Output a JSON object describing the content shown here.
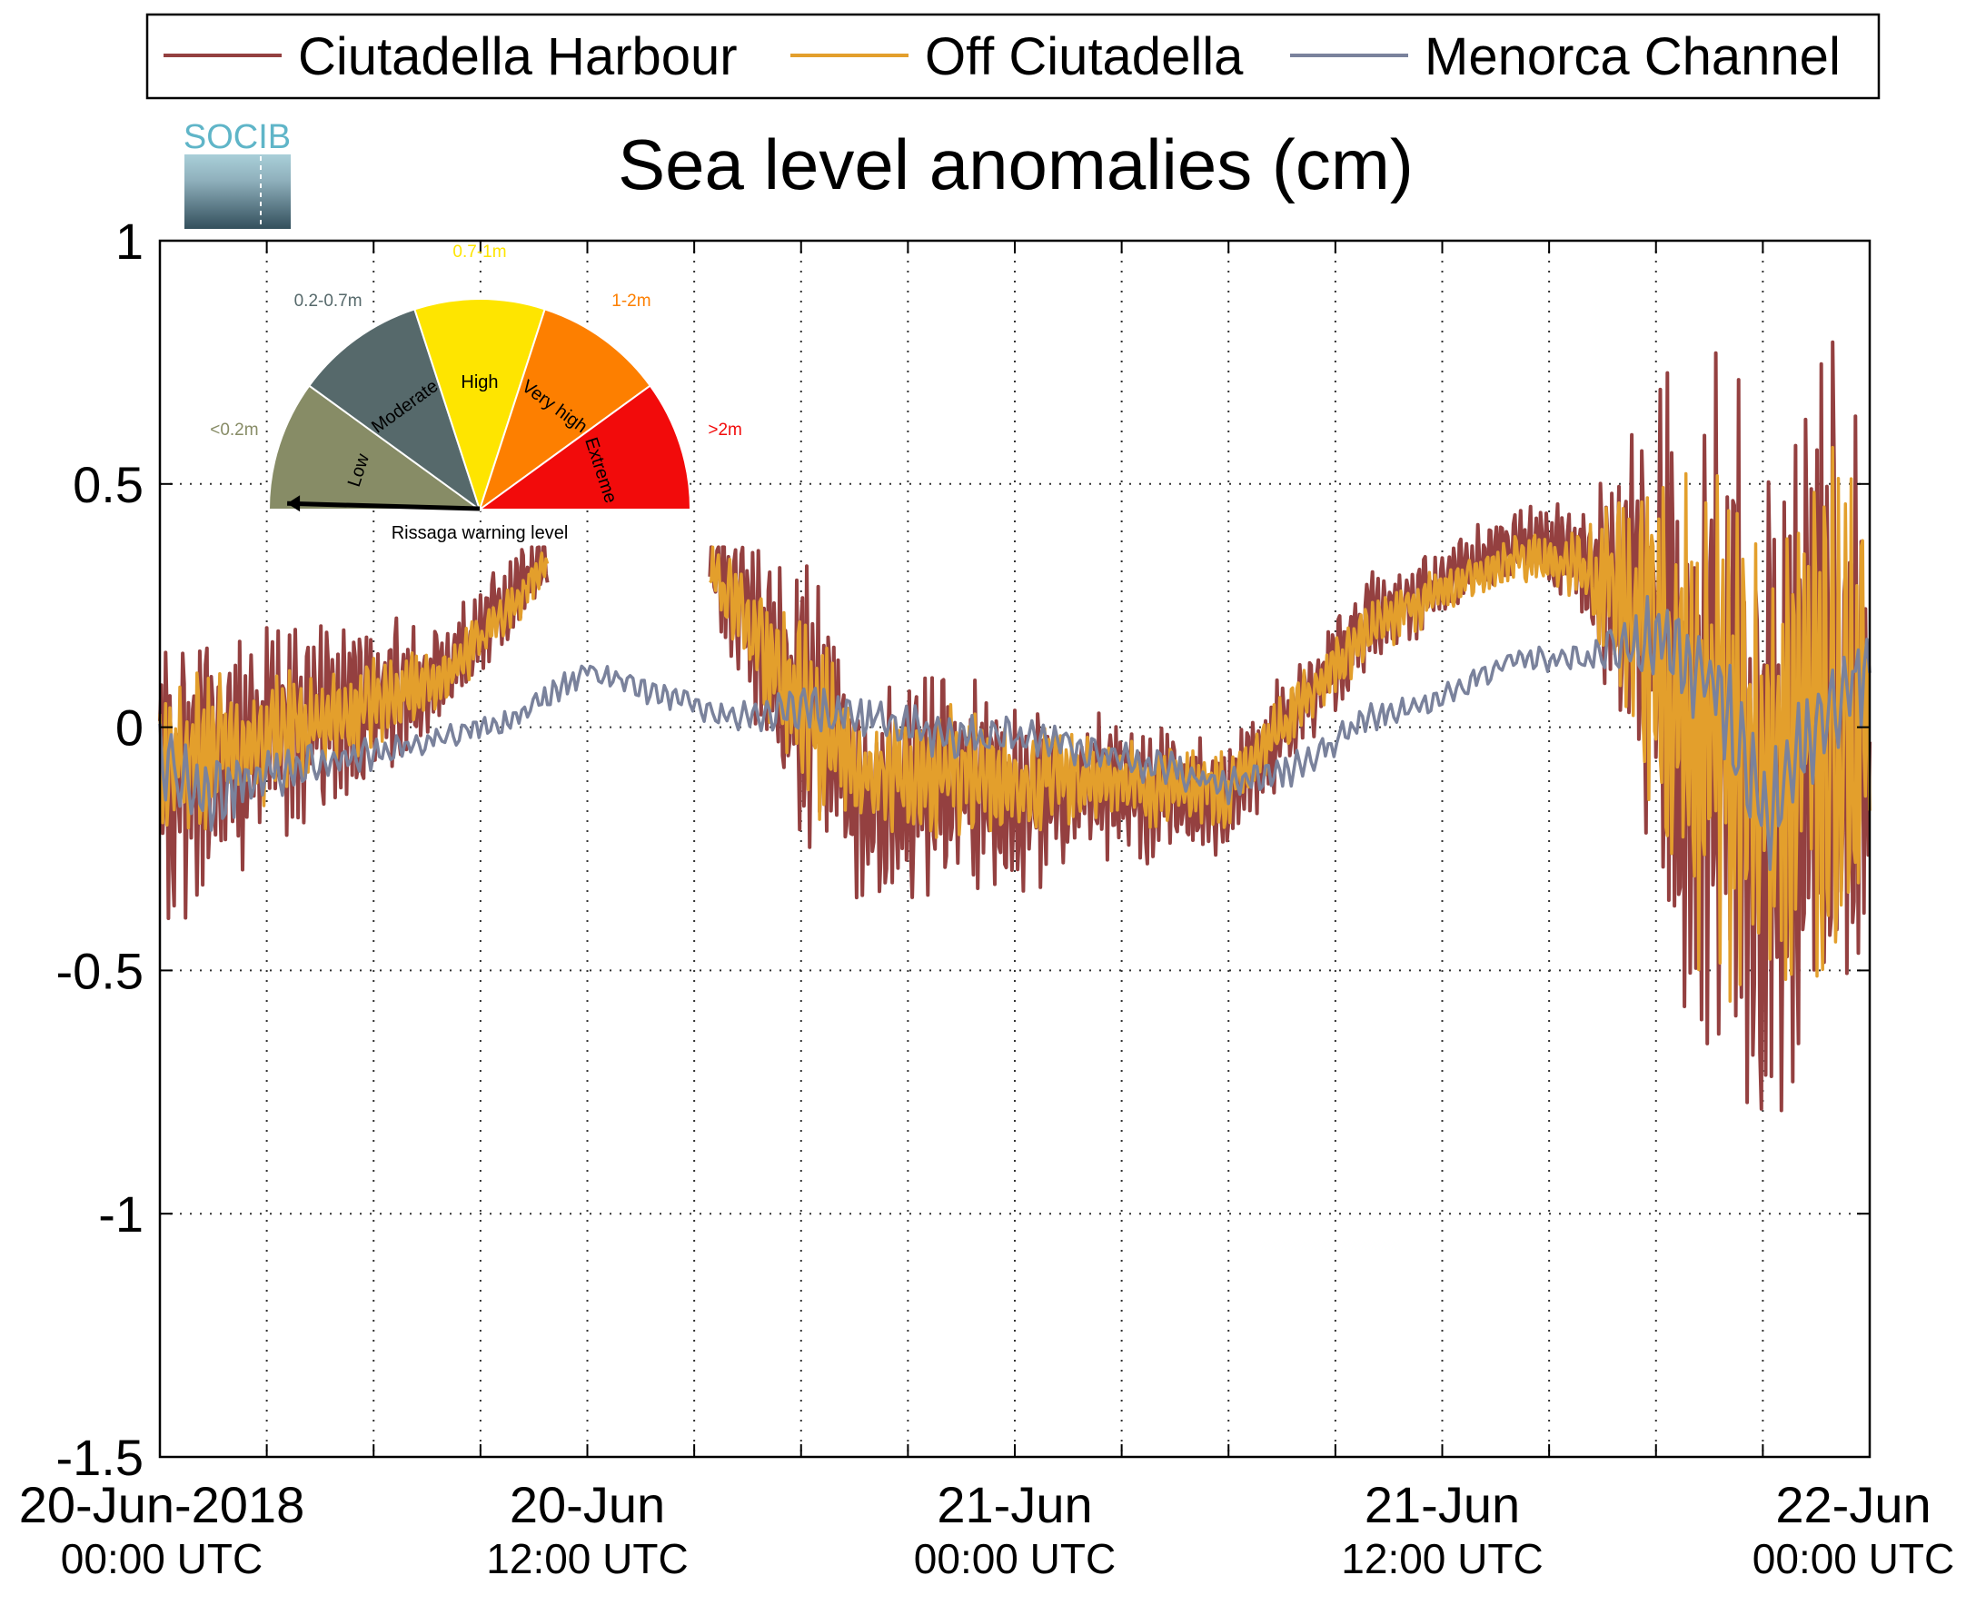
{
  "chart_data": {
    "type": "line",
    "title": "Sea level anomalies (cm)",
    "xlabel": "",
    "ylabel": "",
    "ylim": [
      -1.5,
      1
    ],
    "yticks": [
      1,
      0.5,
      0,
      -0.5,
      -1,
      -1.5
    ],
    "ytick_labels": [
      "1",
      "0.5",
      "0",
      "-0.5",
      "-1",
      "-1.5"
    ],
    "xlim_hours": [
      0,
      48
    ],
    "x_unit": "hours since 20-Jun-2018 00:00 UTC",
    "xtick_labels": [
      {
        "hour": 0,
        "date": "20-Jun-2018",
        "time": "00:00 UTC"
      },
      {
        "hour": 12,
        "date": "20-Jun",
        "time": "12:00 UTC"
      },
      {
        "hour": 24,
        "date": "21-Jun",
        "time": "00:00 UTC"
      },
      {
        "hour": 36,
        "date": "21-Jun",
        "time": "12:00 UTC"
      },
      {
        "hour": 48,
        "date": "22-Jun",
        "time": "00:00 UTC"
      }
    ],
    "grid": true,
    "legend_position": "top",
    "series": [
      {
        "name": "Ciutadella Harbour",
        "color": "#944040",
        "gaps": [
          [
            10.9,
            15.4
          ]
        ],
        "hours": [
          0,
          2,
          4,
          6,
          8,
          10,
          10.8,
          15.5,
          18,
          20,
          22,
          24,
          26,
          28,
          30,
          32,
          34,
          36,
          38,
          40,
          42,
          43,
          44,
          45,
          46,
          47,
          48
        ],
        "values": [
          -0.12,
          -0.05,
          0.0,
          0.05,
          0.12,
          0.28,
          0.35,
          0.34,
          0.05,
          -0.15,
          -0.1,
          -0.15,
          -0.12,
          -0.14,
          -0.15,
          0.05,
          0.22,
          0.3,
          0.38,
          0.35,
          0.2,
          -0.05,
          0.0,
          -0.12,
          0.0,
          0.0,
          -0.02
        ],
        "noise_amp": [
          0.35,
          0.28,
          0.22,
          0.18,
          0.12,
          0.08,
          0.08,
          0.1,
          0.32,
          0.25,
          0.25,
          0.2,
          0.18,
          0.15,
          0.14,
          0.1,
          0.12,
          0.08,
          0.08,
          0.12,
          0.6,
          0.8,
          0.85,
          0.75,
          0.8,
          0.9,
          0.6
        ]
      },
      {
        "name": "Off Ciutadella",
        "color": "#e39f2c",
        "gaps": [
          [
            10.9,
            15.4
          ]
        ],
        "hours": [
          0,
          2,
          4,
          6,
          8,
          10,
          10.8,
          15.5,
          18,
          20,
          22,
          24,
          26,
          28,
          30,
          32,
          34,
          36,
          38,
          40,
          42,
          43,
          44,
          45,
          46,
          47,
          48
        ],
        "values": [
          -0.08,
          -0.04,
          0.0,
          0.05,
          0.1,
          0.26,
          0.33,
          0.32,
          0.04,
          -0.12,
          -0.08,
          -0.12,
          -0.1,
          -0.12,
          -0.13,
          0.05,
          0.2,
          0.28,
          0.35,
          0.33,
          0.18,
          -0.03,
          0.02,
          -0.1,
          0.02,
          0.0,
          -0.01
        ],
        "noise_amp": [
          0.2,
          0.16,
          0.12,
          0.1,
          0.07,
          0.05,
          0.05,
          0.06,
          0.2,
          0.16,
          0.15,
          0.12,
          0.1,
          0.09,
          0.08,
          0.06,
          0.07,
          0.05,
          0.05,
          0.08,
          0.4,
          0.55,
          0.6,
          0.5,
          0.55,
          0.65,
          0.4
        ]
      },
      {
        "name": "Menorca Channel",
        "color": "#7a829c",
        "gaps": [],
        "hours": [
          0,
          1,
          2,
          4,
          6,
          8,
          10,
          12,
          14,
          16,
          18,
          20,
          22,
          24,
          26,
          28,
          30,
          32,
          34,
          36,
          38,
          40,
          42,
          44,
          45,
          46,
          47,
          48
        ],
        "values": [
          -0.05,
          -0.15,
          -0.12,
          -0.08,
          -0.05,
          -0.02,
          0.02,
          0.12,
          0.07,
          0.02,
          0.04,
          0.02,
          -0.02,
          -0.02,
          -0.05,
          -0.08,
          -0.12,
          -0.08,
          0.02,
          0.06,
          0.14,
          0.14,
          0.2,
          0.05,
          -0.2,
          -0.05,
          0.05,
          0.1
        ],
        "noise_amp": [
          0.1,
          0.1,
          0.08,
          0.05,
          0.04,
          0.03,
          0.03,
          0.03,
          0.03,
          0.03,
          0.05,
          0.05,
          0.05,
          0.05,
          0.05,
          0.04,
          0.04,
          0.04,
          0.03,
          0.03,
          0.03,
          0.03,
          0.1,
          0.15,
          0.15,
          0.12,
          0.12,
          0.1
        ]
      }
    ]
  },
  "gauge": {
    "caption": "Rissaga warning level",
    "segments": [
      {
        "label": "Low",
        "range_label": "<0.2m",
        "color": "#878c66"
      },
      {
        "label": "Moderate",
        "range_label": "0.2-0.7m",
        "color": "#56696b"
      },
      {
        "label": "High",
        "range_label": "0.7-1m",
        "color": "#fee500"
      },
      {
        "label": "Very high",
        "range_label": "1-2m",
        "color": "#fd7f00"
      },
      {
        "label": "Extreme",
        "range_label": ">2m",
        "color": "#f20b0b"
      }
    ],
    "needle_level": "Low"
  },
  "logo": {
    "text": "SOCIB"
  }
}
